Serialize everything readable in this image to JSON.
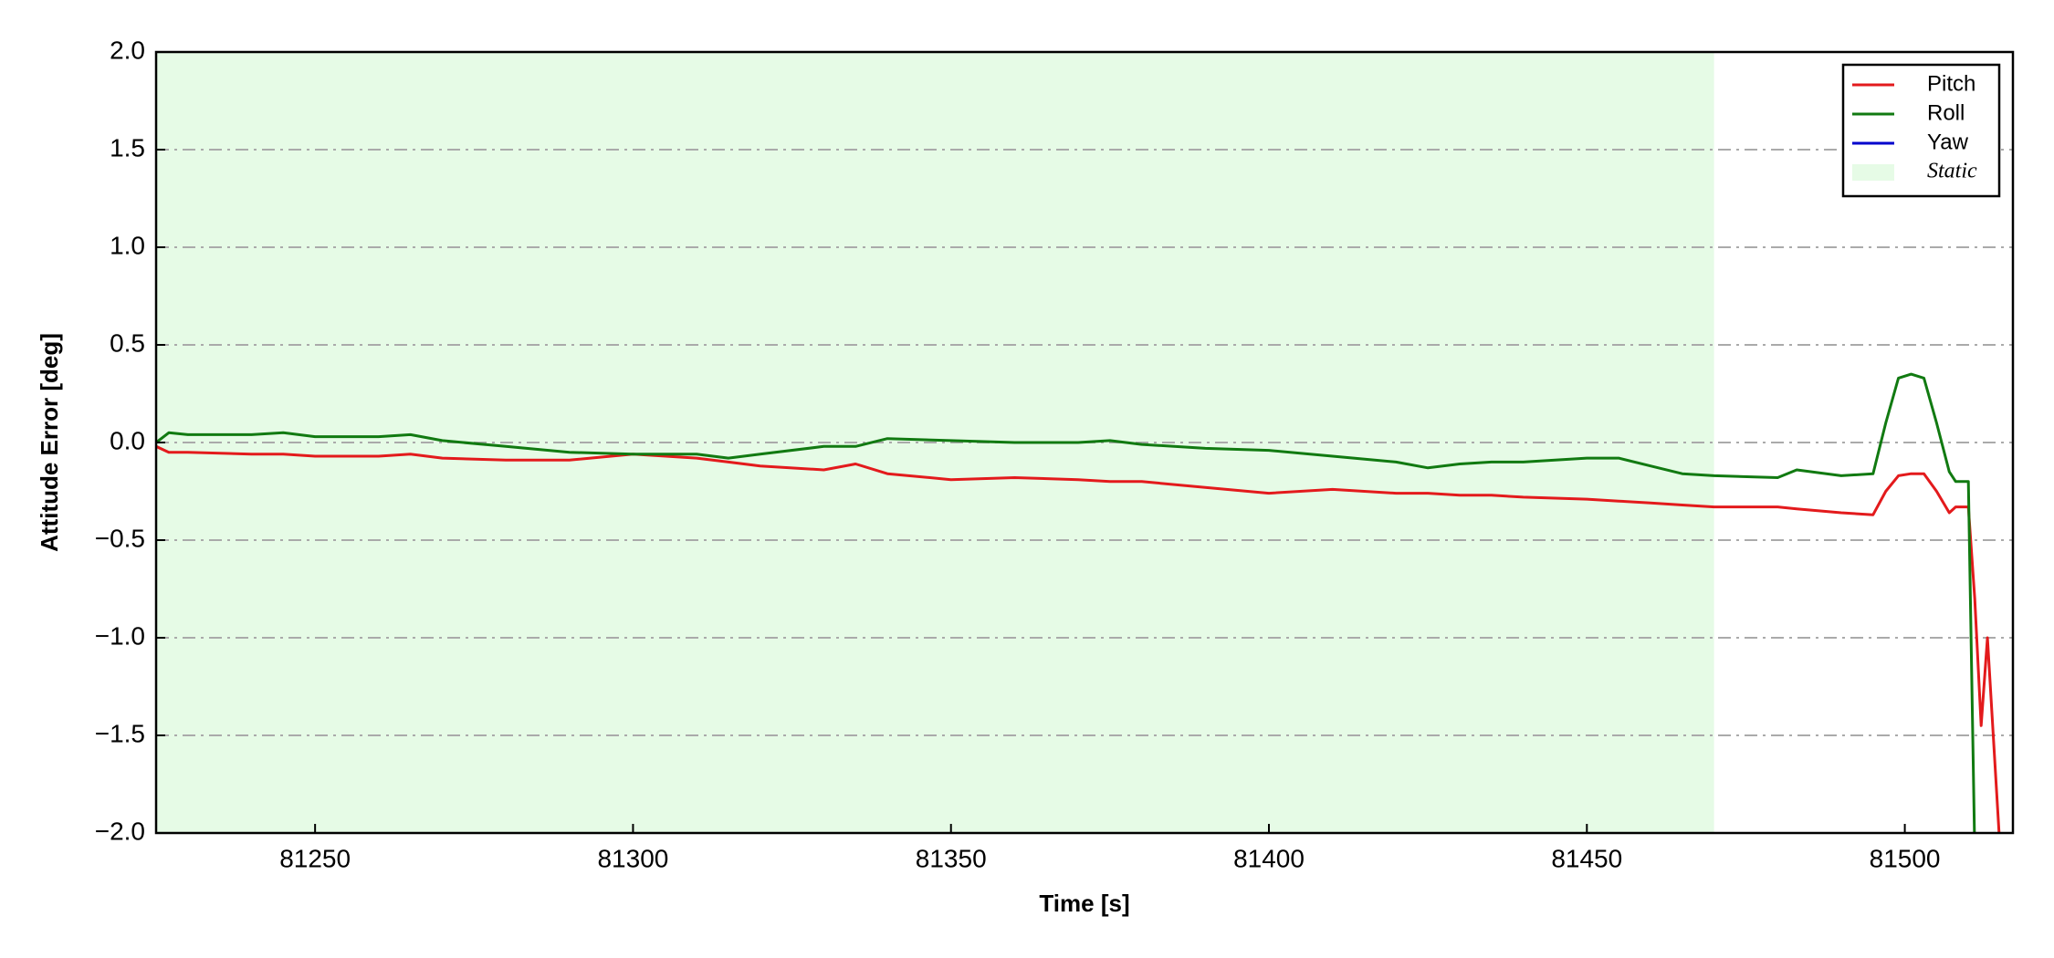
{
  "chart_data": {
    "type": "line",
    "xlabel": "Time [s]",
    "ylabel": "Attitude Error [deg]",
    "x": [
      81225,
      81227,
      81230,
      81240,
      81245,
      81250,
      81260,
      81265,
      81270,
      81280,
      81290,
      81300,
      81310,
      81315,
      81320,
      81330,
      81335,
      81340,
      81350,
      81360,
      81370,
      81375,
      81380,
      81390,
      81400,
      81410,
      81420,
      81425,
      81430,
      81435,
      81440,
      81450,
      81455,
      81460,
      81465,
      81470,
      81480,
      81483,
      81490,
      81495,
      81497,
      81499,
      81501,
      81503,
      81505,
      81507,
      81508,
      81510,
      81511,
      81512,
      81513,
      81515
    ],
    "series": [
      {
        "name": "Pitch",
        "color": "#e31a1c",
        "values": [
          -0.02,
          -0.05,
          -0.05,
          -0.06,
          -0.06,
          -0.07,
          -0.07,
          -0.06,
          -0.08,
          -0.09,
          -0.09,
          -0.06,
          -0.08,
          -0.1,
          -0.12,
          -0.14,
          -0.11,
          -0.16,
          -0.19,
          -0.18,
          -0.19,
          -0.2,
          -0.2,
          -0.23,
          -0.26,
          -0.24,
          -0.26,
          -0.26,
          -0.27,
          -0.27,
          -0.28,
          -0.29,
          -0.3,
          -0.31,
          -0.32,
          -0.33,
          -0.33,
          -0.34,
          -0.36,
          -0.37,
          -0.25,
          -0.17,
          -0.16,
          -0.16,
          -0.25,
          -0.36,
          -0.33,
          -0.33,
          -0.8,
          -1.45,
          -1.0,
          -2.1
        ]
      },
      {
        "name": "Roll",
        "color": "#117a11",
        "values": [
          0.0,
          0.05,
          0.04,
          0.04,
          0.05,
          0.03,
          0.03,
          0.04,
          0.01,
          -0.02,
          -0.05,
          -0.06,
          -0.06,
          -0.08,
          -0.06,
          -0.02,
          -0.02,
          0.02,
          0.01,
          0.0,
          0.0,
          0.01,
          -0.01,
          -0.03,
          -0.04,
          -0.07,
          -0.1,
          -0.13,
          -0.11,
          -0.1,
          -0.1,
          -0.08,
          -0.08,
          -0.12,
          -0.16,
          -0.17,
          -0.18,
          -0.14,
          -0.17,
          -0.16,
          0.1,
          0.33,
          0.35,
          0.33,
          0.1,
          -0.15,
          -0.2,
          -0.2,
          -2.1,
          null,
          null,
          null
        ]
      },
      {
        "name": "Yaw",
        "color": "#0000cc",
        "values": [
          null,
          null,
          null,
          null,
          null,
          null,
          null,
          null,
          null,
          null,
          null,
          null,
          null,
          null,
          null,
          null,
          null,
          null,
          null,
          null,
          null,
          null,
          null,
          null,
          null,
          null,
          null,
          null,
          null,
          null,
          null,
          null,
          null,
          null,
          null,
          null,
          null,
          null,
          null,
          null,
          null,
          null,
          null,
          null,
          null,
          null,
          null,
          null,
          null,
          null,
          null,
          null
        ]
      }
    ],
    "spans": [
      {
        "name": "Static",
        "start": 81225,
        "end": 81470,
        "color": "#e6fbe6"
      }
    ],
    "xlim": [
      81225,
      81517
    ],
    "ylim": [
      -2,
      2
    ],
    "xticks": [
      81250,
      81300,
      81350,
      81400,
      81450,
      81500
    ],
    "yticks": [
      {
        "value": -2,
        "label": "−2.0"
      },
      {
        "value": -1.5,
        "label": "−1.5"
      },
      {
        "value": -1,
        "label": "−1.0"
      },
      {
        "value": -0.5,
        "label": "−0.5"
      },
      {
        "value": 0,
        "label": "0.0"
      },
      0.5,
      {
        "value": 1,
        "label": "1.0"
      },
      1.5,
      {
        "value": 2,
        "label": "2.0"
      }
    ],
    "grid": true,
    "legend": "upper right"
  }
}
